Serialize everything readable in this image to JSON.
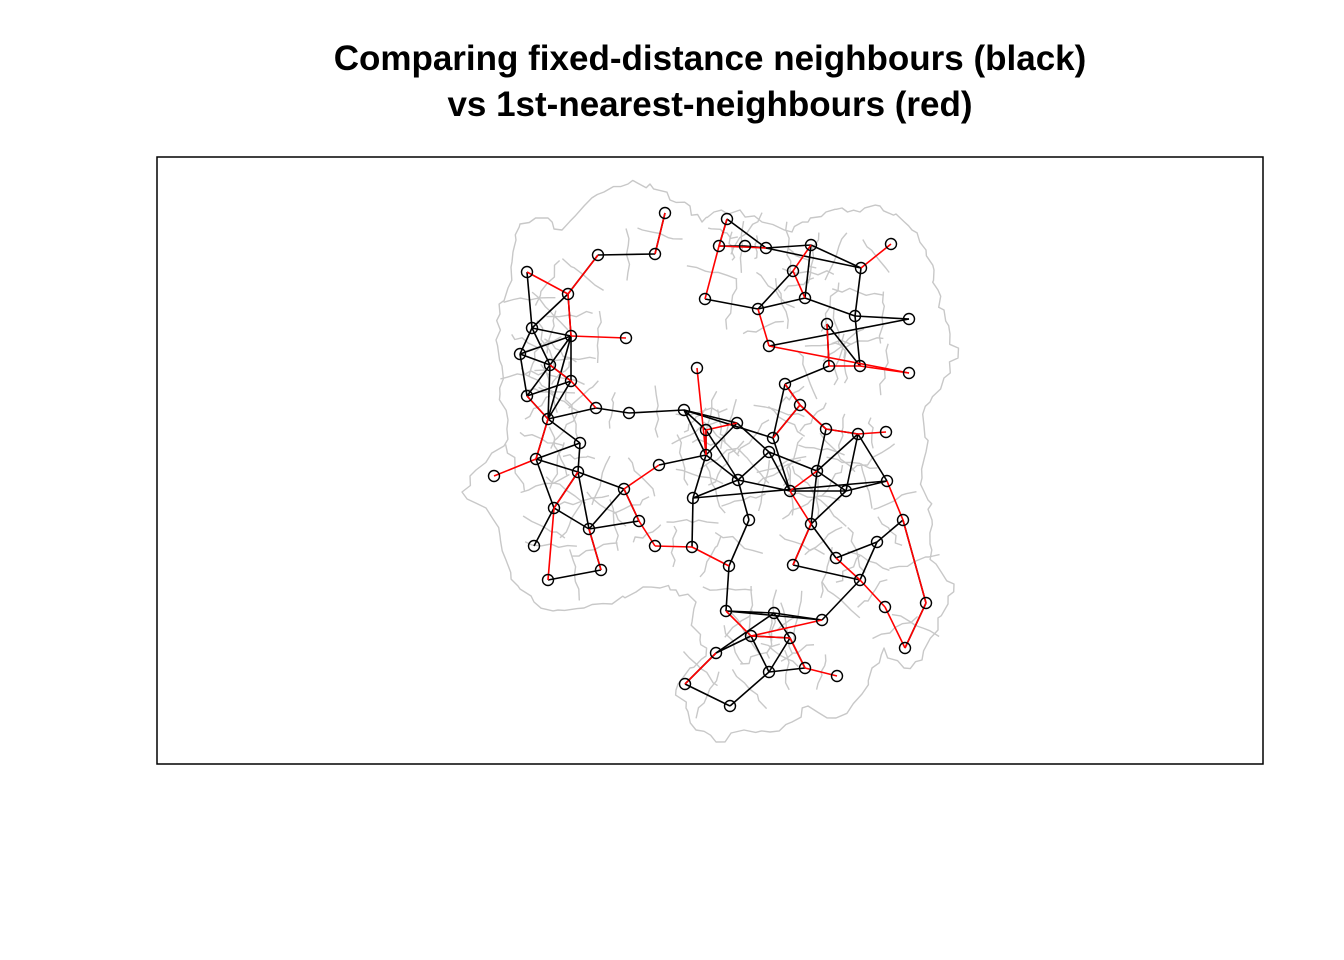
{
  "title": {
    "line1": "Comparing fixed-distance neighbours (black)",
    "line2": "vs 1st-nearest-neighbours (red)"
  },
  "colors": {
    "fixed_distance_edges": "#000000",
    "nearest_neighbour_edges": "#ff0000",
    "region_boundaries": "#c8c8c8",
    "frame": "#000000",
    "nodes": "#000000"
  },
  "legend": "none",
  "axes": "none"
}
